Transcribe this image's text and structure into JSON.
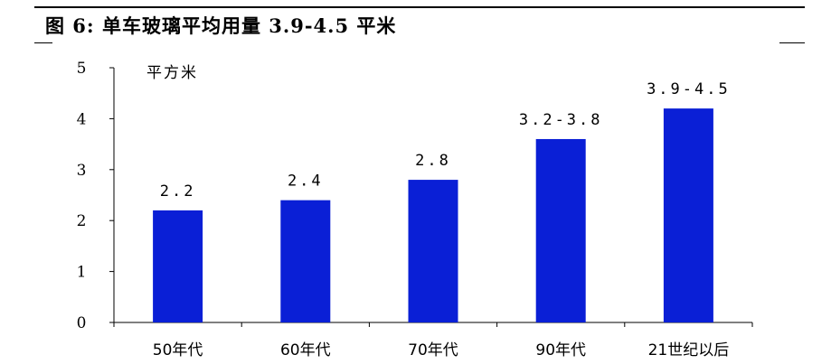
{
  "figure": {
    "title": "图 6:  单车玻璃平均用量 3.9-4.5 平米"
  },
  "chart_data": {
    "type": "bar",
    "unit_label": "平方米",
    "categories": [
      "50年代",
      "60年代",
      "70年代",
      "90年代",
      "21世纪以后"
    ],
    "values": [
      2.2,
      2.4,
      2.8,
      3.6,
      4.2
    ],
    "data_labels": [
      "2.2",
      "2.4",
      "2.8",
      "3.2-3.8",
      "3.9-4.5"
    ],
    "ylim": [
      0,
      5
    ],
    "yticks": [
      "0",
      "1",
      "2",
      "3",
      "4",
      "5"
    ],
    "bar_color": "#0a1fd6",
    "grid": false,
    "legend": "none"
  }
}
